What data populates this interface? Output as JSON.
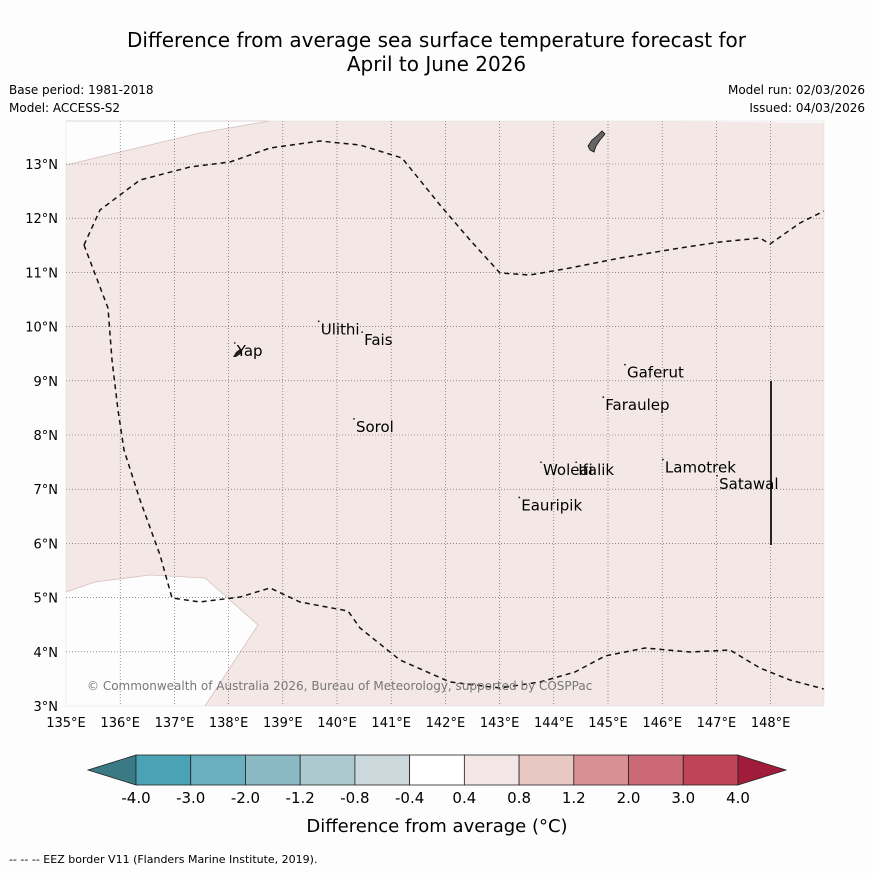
{
  "title_line1": "Difference from average sea surface temperature forecast for",
  "title_line2": "April to June 2026",
  "base_period": "Base period: 1981-2018",
  "model": "Model: ACCESS-S2",
  "model_run": "Model run: 02/03/2026",
  "issued": "Issued: 04/03/2026",
  "copyright": "© Commonwealth of Australia 2026, Bureau of Meteorology, supported by COSPPac",
  "footer": "--  --  -- EEZ border V11 (Flanders Marine Institute, 2019).",
  "map": {
    "lon_ticks": [
      "135°E",
      "136°E",
      "137°E",
      "138°E",
      "139°E",
      "140°E",
      "141°E",
      "142°E",
      "143°E",
      "144°E",
      "145°E",
      "146°E",
      "147°E",
      "148°E"
    ],
    "lat_ticks": [
      "13°N",
      "12°N",
      "11°N",
      "10°N",
      "9°N",
      "8°N",
      "7°N",
      "6°N",
      "5°N",
      "4°N",
      "3°N"
    ],
    "places": [
      {
        "name": "Ulithi",
        "lon": 139.7,
        "lat": 9.95
      },
      {
        "name": "Fais",
        "lon": 140.5,
        "lat": 9.75
      },
      {
        "name": "Yap",
        "lon": 138.15,
        "lat": 9.55
      },
      {
        "name": "Gaferut",
        "lon": 145.35,
        "lat": 9.15
      },
      {
        "name": "Faraulep",
        "lon": 144.95,
        "lat": 8.55
      },
      {
        "name": "Sorol",
        "lon": 140.35,
        "lat": 8.15
      },
      {
        "name": "Lamotrek",
        "lon": 146.05,
        "lat": 7.4
      },
      {
        "name": "Woleai",
        "lon": 143.8,
        "lat": 7.35
      },
      {
        "name": "Ifalik",
        "lon": 144.45,
        "lat": 7.35
      },
      {
        "name": "Satawal",
        "lon": 147.05,
        "lat": 7.1
      },
      {
        "name": "Eauripik",
        "lon": 143.4,
        "lat": 6.7
      }
    ]
  },
  "colorbar": {
    "label": "Difference from average (°C)",
    "ticks": [
      "-4.0",
      "-3.0",
      "-2.0",
      "-1.2",
      "-0.8",
      "-0.4",
      "0.4",
      "0.8",
      "1.2",
      "2.0",
      "3.0",
      "4.0"
    ],
    "colors": [
      "#3a7a85",
      "#4aa3b4",
      "#6aafbd",
      "#8ab9c4",
      "#abc9ce",
      "#cbd8dc",
      "#ffffff",
      "#f4e6e6",
      "#e9c7c3",
      "#d89095",
      "#cb6a76",
      "#be4456",
      "#a01c3a"
    ]
  }
}
